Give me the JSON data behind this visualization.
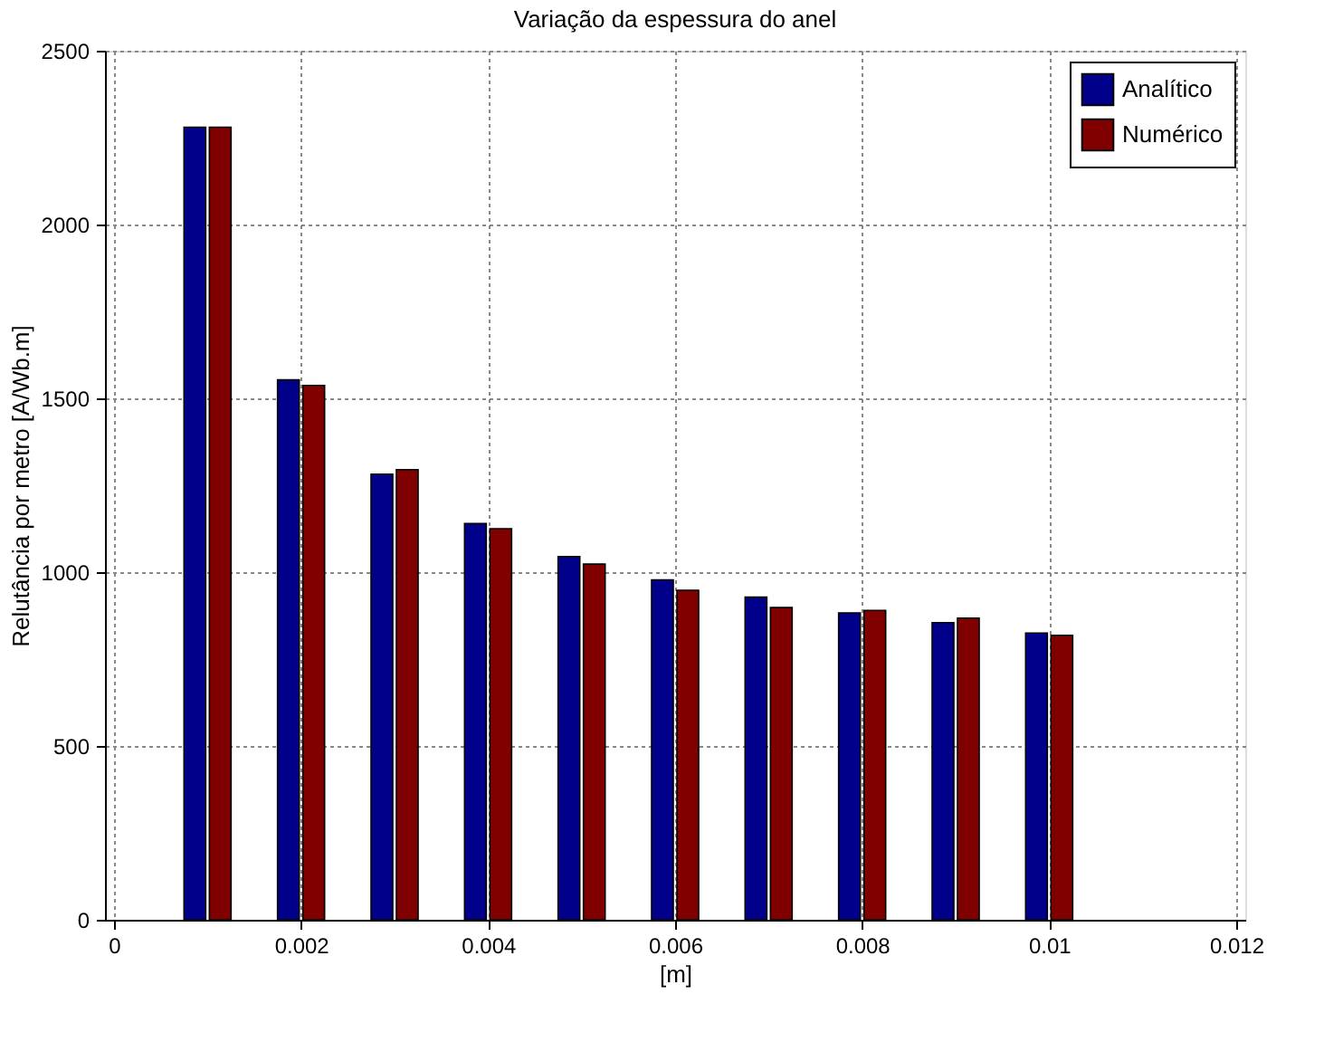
{
  "chart_data": {
    "type": "bar",
    "title": "Variação da espessura do anel",
    "xlabel": "[m]",
    "ylabel": "Relutância por metro [A/Wb.m]",
    "x": [
      0.001,
      0.002,
      0.003,
      0.004,
      0.005,
      0.006,
      0.007,
      0.008,
      0.009,
      0.01
    ],
    "series": [
      {
        "name": "Analítico",
        "color": "#00008b",
        "values": [
          2280,
          1553,
          1282,
          1140,
          1045,
          978,
          928,
          883,
          855,
          825
        ]
      },
      {
        "name": "Numérico",
        "color": "#800000",
        "values": [
          2280,
          1537,
          1295,
          1125,
          1023,
          948,
          898,
          890,
          868,
          818
        ]
      }
    ],
    "xlim": [
      0,
      0.012
    ],
    "xticks": [
      0,
      0.002,
      0.004,
      0.006,
      0.008,
      0.01,
      0.012
    ],
    "ylim": [
      0,
      2500
    ],
    "yticks": [
      0,
      500,
      1000,
      1500,
      2000,
      2500
    ],
    "grid": true,
    "legend": "top right"
  }
}
